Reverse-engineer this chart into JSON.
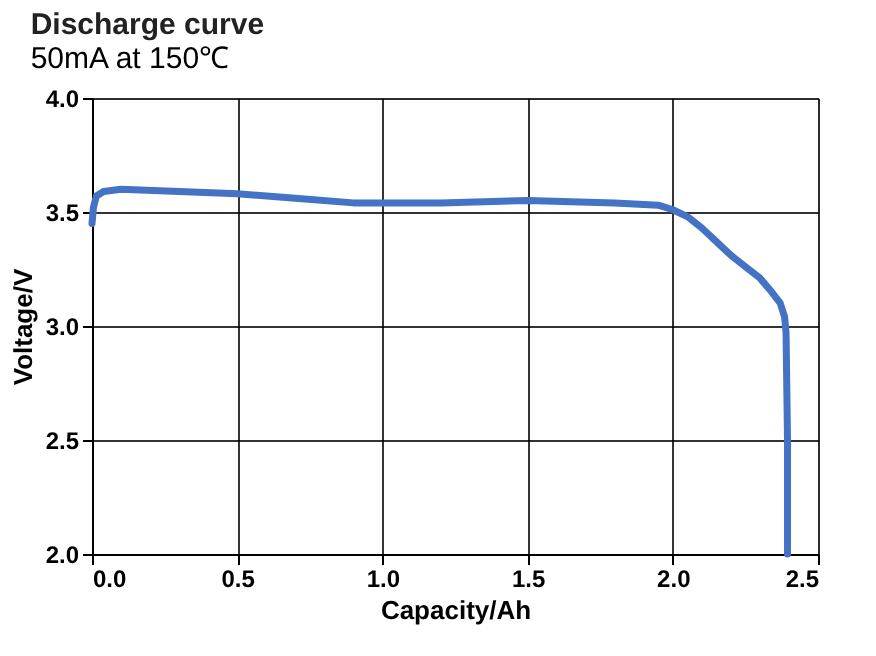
{
  "chart_data": {
    "type": "line",
    "title": "Discharge curve",
    "subtitle": "50mA at 150℃",
    "xlabel": "Capacity/Ah",
    "ylabel": "Voltage/V",
    "x": [
      0,
      0.005,
      0.015,
      0.04,
      0.1,
      0.3,
      0.5,
      0.7,
      0.9,
      1.0,
      1.2,
      1.5,
      1.8,
      1.95,
      2.0,
      2.05,
      2.1,
      2.15,
      2.2,
      2.25,
      2.3,
      2.34,
      2.37,
      2.385,
      2.39,
      2.395,
      2.395
    ],
    "series": [
      {
        "color": "#4472c4",
        "values": [
          3.45,
          3.52,
          3.57,
          3.59,
          3.6,
          3.59,
          3.58,
          3.56,
          3.54,
          3.54,
          3.54,
          3.55,
          3.54,
          3.53,
          3.51,
          3.48,
          3.43,
          3.37,
          3.31,
          3.26,
          3.21,
          3.15,
          3.1,
          3.04,
          2.97,
          2.5,
          2.0
        ]
      }
    ],
    "xlim": [
      0,
      2.5
    ],
    "ylim": [
      2.0,
      4.0
    ],
    "xticks": [
      {
        "value": 0,
        "label": "0.0"
      },
      {
        "value": 0.5,
        "label": "0.5"
      },
      {
        "value": 1,
        "label": "1.0"
      },
      {
        "value": 1.5,
        "label": "1.5"
      },
      {
        "value": 2,
        "label": "2.0"
      },
      {
        "value": 2.5,
        "label": "2.5"
      }
    ],
    "yticks": [
      {
        "value": 2,
        "label": "2.0"
      },
      {
        "value": 2.5,
        "label": "2.5"
      },
      {
        "value": 3,
        "label": "3.0"
      },
      {
        "value": 3.5,
        "label": "3.5"
      },
      {
        "value": 4,
        "label": "4.0"
      }
    ],
    "grid": true,
    "marker": "none",
    "line_style": "solid"
  }
}
